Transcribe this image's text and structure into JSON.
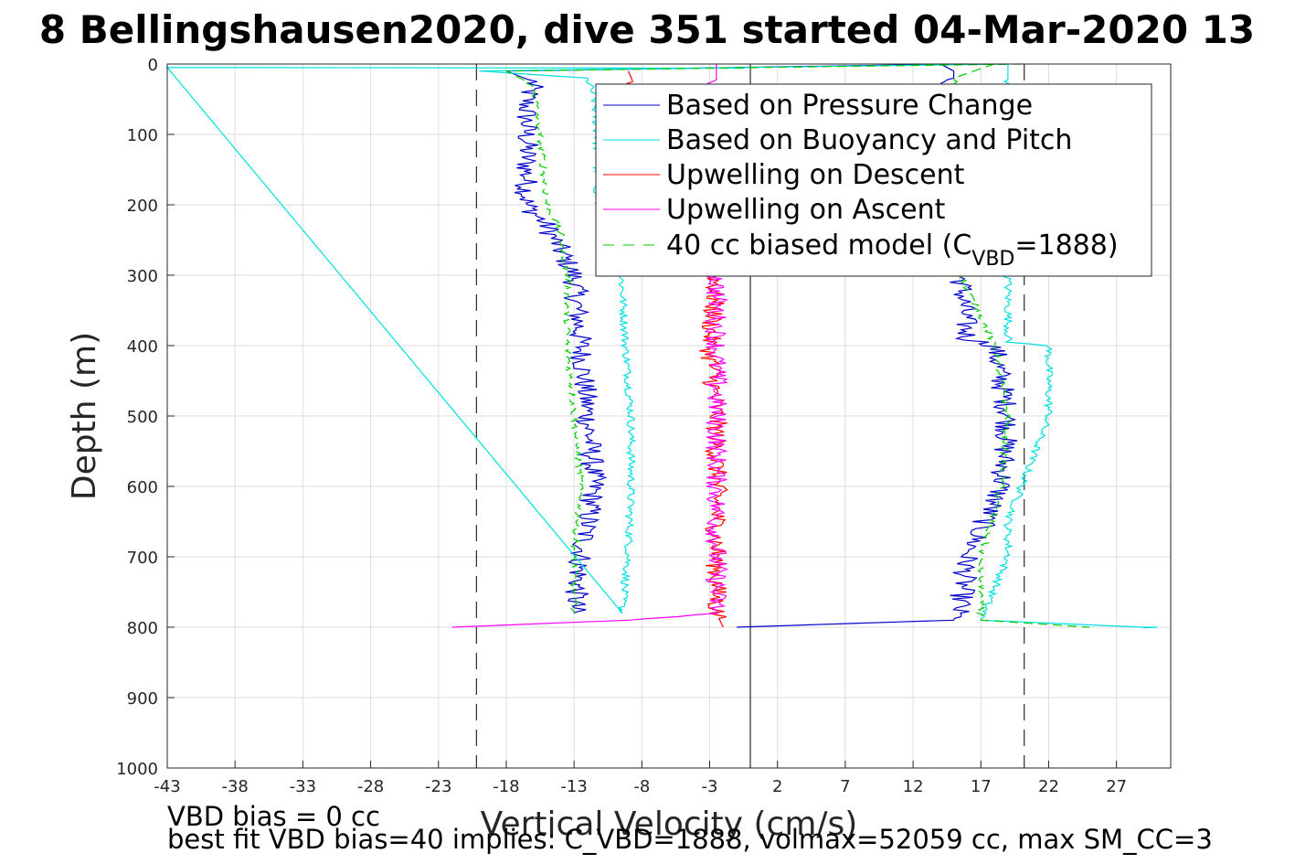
{
  "chart_data": {
    "type": "line",
    "title": "8 Bellingshausen2020, dive 351 started 04-Mar-2020 13",
    "xlabel": "Vertical Velocity (cm/s)",
    "ylabel": "Depth (m)",
    "xlim": [
      -43,
      31
    ],
    "ylim": [
      1000,
      0
    ],
    "y_reversed": true,
    "grid": true,
    "legend_position": "top-right",
    "xticks": [
      "-43",
      "-38",
      "-33",
      "-28",
      "-23",
      "-18",
      "-13",
      "-8",
      "-3",
      "2",
      "7",
      "12",
      "17",
      "22",
      "27"
    ],
    "yticks": [
      "0",
      "100",
      "200",
      "300",
      "400",
      "500",
      "600",
      "700",
      "800",
      "900",
      "1000"
    ],
    "reference_lines": [
      {
        "x": -20.2,
        "style": "dashed",
        "color": "#000000"
      },
      {
        "x": 0.0,
        "style": "solid",
        "color": "#000000"
      },
      {
        "x": 20.2,
        "style": "dashed",
        "color": "#000000"
      }
    ],
    "series": [
      {
        "name": "Based on Pressure Change",
        "color": "#0000cc",
        "style": "solid",
        "noise": 0.9,
        "descent": {
          "depth": [
            0,
            10,
            25,
            50,
            100,
            150,
            200,
            230,
            300,
            400,
            500,
            600,
            700,
            780
          ],
          "value": [
            16,
            -18,
            -16,
            -16.5,
            -16.5,
            -16.5,
            -16.5,
            -15,
            -13,
            -12.5,
            -12,
            -11.5,
            -12.5,
            -13
          ]
        },
        "ascent": {
          "depth": [
            0,
            10,
            20,
            25,
            300,
            390,
            400,
            450,
            500,
            600,
            700,
            770,
            790,
            800
          ],
          "value": [
            14,
            15,
            15,
            14,
            15.5,
            16,
            18,
            18.5,
            19,
            18.5,
            16,
            15.5,
            15,
            -1
          ]
        }
      },
      {
        "name": "Based on Buoyancy and Pitch",
        "color": "#00e0e0",
        "style": "solid",
        "noise": 0.3,
        "descent": {
          "depth": [
            0,
            10,
            20,
            50,
            100,
            200,
            230,
            300,
            400,
            500,
            600,
            700,
            780
          ],
          "value": [
            19,
            -20,
            -12,
            -11.5,
            -11.3,
            -11.3,
            -10.5,
            -9.5,
            -9.2,
            -8.8,
            -8.8,
            -9,
            -9.5
          ],
          "spikes": [
            {
              "depth": 5,
              "value": -43
            }
          ]
        },
        "ascent": {
          "depth": [
            0,
            15,
            300,
            395,
            400,
            420,
            500,
            550,
            600,
            650,
            700,
            790,
            800
          ],
          "value": [
            19,
            19,
            19,
            19,
            22,
            22,
            22,
            21,
            20,
            19,
            19,
            17,
            29
          ],
          "spikes": [
            {
              "depth": 800,
              "value": 30
            }
          ]
        }
      },
      {
        "name": "Upwelling on Descent",
        "color": "#ff0000",
        "style": "solid",
        "noise": 0.8,
        "descent": {
          "depth": [
            10,
            300,
            400,
            500,
            600,
            700,
            780,
            800
          ],
          "value": [
            -9,
            -2.5,
            -3,
            -2.5,
            -2.5,
            -2.5,
            -2.5,
            -2
          ]
        }
      },
      {
        "name": "Upwelling on Ascent",
        "color": "#ff00ff",
        "style": "solid",
        "noise": 0.8,
        "ascent": {
          "depth": [
            0,
            300,
            500,
            600,
            700,
            780,
            790,
            800
          ],
          "value": [
            -2.5,
            -2.5,
            -2.5,
            -2.5,
            -2.5,
            -2.5,
            -9,
            -22
          ]
        }
      },
      {
        "name": "40 cc biased model (C_VBD=1888)",
        "color": "#00cc00",
        "style": "dashed",
        "noise": 0.25,
        "descent": {
          "depth": [
            0,
            10,
            30,
            100,
            200,
            240,
            300,
            400,
            500,
            600,
            700,
            780
          ],
          "value": [
            20,
            -18,
            -16,
            -15.5,
            -15,
            -14,
            -13.5,
            -13.5,
            -13,
            -12.5,
            -13,
            -13
          ]
        },
        "ascent": {
          "depth": [
            0,
            20,
            300,
            400,
            500,
            600,
            700,
            790,
            800
          ],
          "value": [
            18,
            15,
            15.5,
            18,
            19,
            18.5,
            17,
            17,
            25
          ]
        }
      }
    ]
  },
  "legend": {
    "entries": [
      "Based on Pressure Change",
      "Based on Buoyancy and Pitch",
      "Upwelling on Descent",
      "Upwelling on Ascent"
    ],
    "model_prefix": "40 cc biased model (C",
    "model_subscript": "VBD",
    "model_suffix": "=1888)"
  },
  "footer": {
    "line1": "VBD bias = 0 cc",
    "line2": "best fit VBD bias=40 implies: C_VBD=1888, volmax=52059 cc, max SM_CC=3"
  },
  "colors": {
    "pressure": "#0000cc",
    "buoyancy": "#00e0e0",
    "descent": "#ff0000",
    "ascent": "#ff00ff",
    "model": "#00cc00",
    "grid": "#dddddd"
  }
}
